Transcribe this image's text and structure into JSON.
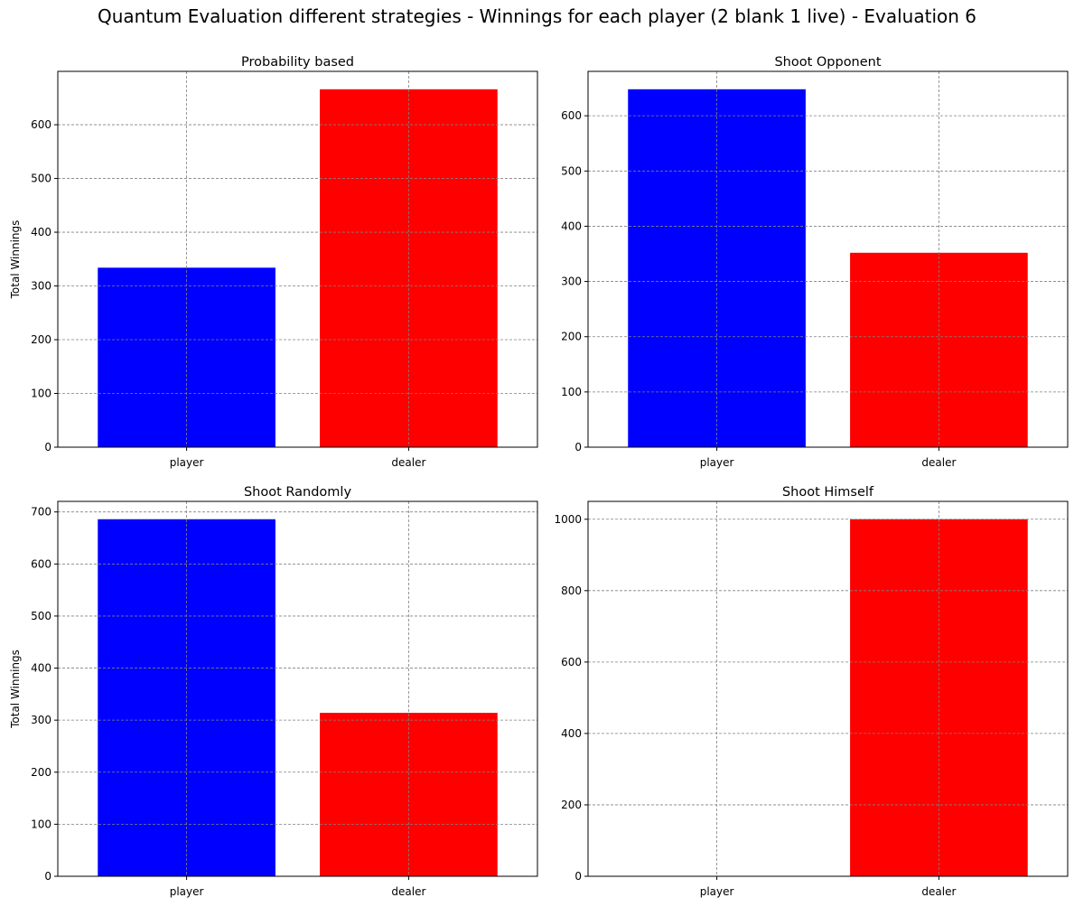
{
  "figure": {
    "title": "Quantum Evaluation different strategies - Winnings for each player (2 blank 1 live) - Evaluation 6"
  },
  "colors": {
    "player": "#0000ff",
    "dealer": "#ff0000",
    "grid": "#808080"
  },
  "chart_data": [
    {
      "type": "bar",
      "title": "Probability based",
      "ylabel": "Total Winnings",
      "categories": [
        "player",
        "dealer"
      ],
      "values": [
        334,
        666
      ],
      "colors": [
        "#0000ff",
        "#ff0000"
      ],
      "ylim": [
        0,
        699.3
      ],
      "yticks": [
        0,
        100,
        200,
        300,
        400,
        500,
        600
      ],
      "grid": true
    },
    {
      "type": "bar",
      "title": "Shoot Opponent",
      "ylabel": "",
      "categories": [
        "player",
        "dealer"
      ],
      "values": [
        648,
        352
      ],
      "colors": [
        "#0000ff",
        "#ff0000"
      ],
      "ylim": [
        0,
        680.4
      ],
      "yticks": [
        0,
        100,
        200,
        300,
        400,
        500,
        600
      ],
      "grid": true
    },
    {
      "type": "bar",
      "title": "Shoot Randomly",
      "ylabel": "Total Winnings",
      "categories": [
        "player",
        "dealer"
      ],
      "values": [
        686,
        314
      ],
      "colors": [
        "#0000ff",
        "#ff0000"
      ],
      "ylim": [
        0,
        720.3
      ],
      "yticks": [
        0,
        100,
        200,
        300,
        400,
        500,
        600,
        700
      ],
      "grid": true
    },
    {
      "type": "bar",
      "title": "Shoot Himself",
      "ylabel": "",
      "categories": [
        "player",
        "dealer"
      ],
      "values": [
        0,
        1000
      ],
      "colors": [
        "#0000ff",
        "#ff0000"
      ],
      "ylim": [
        0,
        1050
      ],
      "yticks": [
        0,
        200,
        400,
        600,
        800,
        1000
      ],
      "grid": true
    }
  ]
}
